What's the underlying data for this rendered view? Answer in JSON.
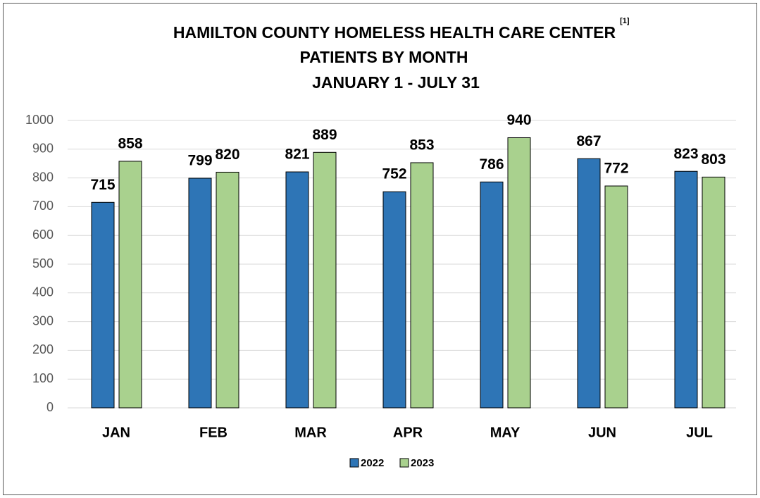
{
  "chart_data": {
    "type": "bar",
    "title": [
      "HAMILTON COUNTY HOMELESS HEALTH CARE CENTER",
      "PATIENTS BY MONTH",
      "JANUARY 1 - JULY 31"
    ],
    "title_note": "[1]",
    "categories": [
      "JAN",
      "FEB",
      "MAR",
      "APR",
      "MAY",
      "JUN",
      "JUL"
    ],
    "series": [
      {
        "name": "2022",
        "color": "#2e75b6",
        "values": [
          715,
          799,
          821,
          752,
          786,
          867,
          823
        ]
      },
      {
        "name": "2023",
        "color": "#a9d18e",
        "values": [
          858,
          820,
          889,
          853,
          940,
          772,
          803
        ]
      }
    ],
    "ylim": [
      0,
      1000
    ],
    "yticks": [
      0,
      100,
      200,
      300,
      400,
      500,
      600,
      700,
      800,
      900,
      1000
    ],
    "grid": true,
    "legend": "bottom"
  }
}
